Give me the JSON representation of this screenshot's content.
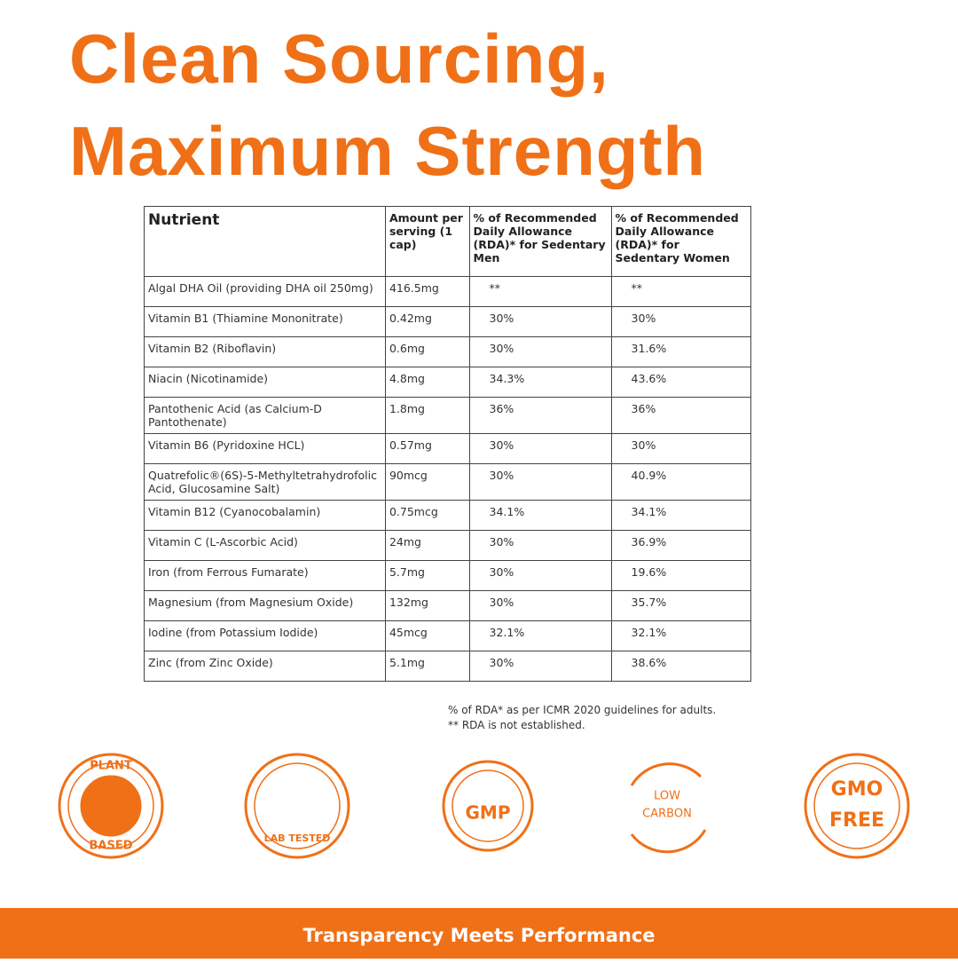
{
  "header": {
    "title_lines": [
      "Clean Sourcing,",
      "Maximum Strength"
    ]
  },
  "table": {
    "columns": [
      "Nutrient",
      "Amount per serving (1 cap)",
      "% of Recommended Daily Allowance (RDA)* for Sedentary Men",
      "% of Recommended Daily Allowance (RDA)* for Sedentary Women"
    ],
    "rows": [
      [
        "Algal DHA Oil (providing DHA oil 250mg)",
        "416.5mg",
        "**",
        "**"
      ],
      [
        "Vitamin B1 (Thiamine Mononitrate)",
        "0.42mg",
        "30%",
        "30%"
      ],
      [
        "Vitamin B2 (Riboflavin)",
        "0.6mg",
        "30%",
        "31.6%"
      ],
      [
        "Niacin (Nicotinamide)",
        "4.8mg",
        "34.3%",
        "43.6%"
      ],
      [
        "Pantothenic Acid (as Calcium-D Pantothenate)",
        "1.8mg",
        "36%",
        "36%"
      ],
      [
        "Vitamin B6 (Pyridoxine HCL)",
        "0.57mg",
        "30%",
        "30%"
      ],
      [
        "Quatrefolic®(6S)-5-Methyltetrahydrofolic Acid, Glucosamine Salt)",
        "90mcg",
        "30%",
        "40.9%"
      ],
      [
        "Vitamin B12 (Cyanocobalamin)",
        "0.75mcg",
        "34.1%",
        "34.1%"
      ],
      [
        "Vitamin C (L-Ascorbic Acid)",
        "24mg",
        "30%",
        "36.9%"
      ],
      [
        "Iron (from Ferrous Fumarate)",
        "5.7mg",
        "30%",
        "19.6%"
      ],
      [
        "Magnesium (from Magnesium Oxide)",
        "132mg",
        "30%",
        "35.7%"
      ],
      [
        "Iodine (from Potassium Iodide)",
        "45mcg",
        "32.1%",
        "32.1%"
      ],
      [
        "Zinc (from Zinc Oxide)",
        "5.1mg",
        "30%",
        "38.6%"
      ]
    ]
  },
  "footnotes": [
    "% of RDA* as per ICMR 2020 guidelines for adults.",
    "** RDA is not established."
  ],
  "badges": [
    {
      "lines": [
        "PLANT",
        "BASED"
      ]
    },
    {
      "lines": [
        "LAB TESTED"
      ]
    },
    {
      "lines": [
        "GMP"
      ]
    },
    {
      "lines": [
        "LOW",
        "CARBON"
      ]
    },
    {
      "lines": [
        "GMO",
        "FREE"
      ]
    }
  ],
  "footer": {
    "text": "Transparency Meets Performance"
  }
}
